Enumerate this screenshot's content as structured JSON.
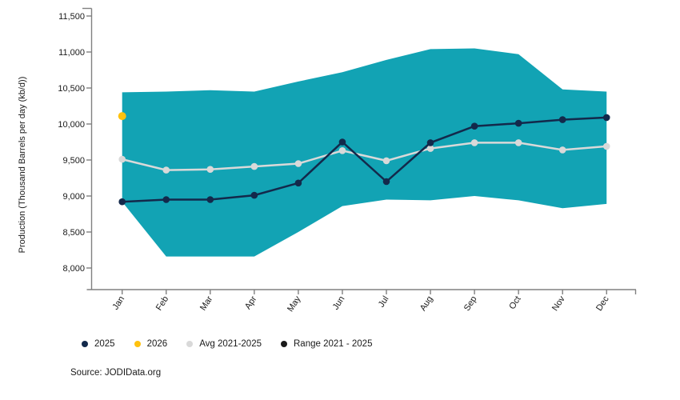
{
  "chart": {
    "y_axis_title": "Production (Thousand Barrels per day (kb/d))",
    "source_note": "Source: JODIData.org",
    "colors": {
      "band": "#12a3b4",
      "line_2025": "#13294b",
      "dot_2026": "#ffc20e",
      "avg_line": "#d9d9d9",
      "range_legend_marker": "#1a1a1a",
      "axis": "#808080",
      "text": "#1a1a1a"
    },
    "legend": [
      {
        "label": "2025",
        "color": "#13294b"
      },
      {
        "label": "2026",
        "color": "#ffc20e"
      },
      {
        "label": "Avg 2021-2025",
        "color": "#d9d9d9"
      },
      {
        "label": "Range 2021 - 2025",
        "color": "#1a1a1a"
      }
    ]
  },
  "chart_data": {
    "type": "line",
    "title": "",
    "xlabel": "",
    "ylabel": "Production (Thousand Barrels per day (kb/d))",
    "ylim": [
      8000,
      11500
    ],
    "grid": false,
    "legend_position": "bottom",
    "categories": [
      "Jan",
      "Feb",
      "Mar",
      "Apr",
      "May",
      "Jun",
      "Jul",
      "Aug",
      "Sep",
      "Oct",
      "Nov",
      "Dec"
    ],
    "y_ticks": [
      {
        "value": 11500,
        "label": "11,500"
      },
      {
        "value": 11000,
        "label": "11,000"
      },
      {
        "value": 10500,
        "label": "10,500"
      },
      {
        "value": 10000,
        "label": "10,000"
      },
      {
        "value": 9500,
        "label": "9,500"
      },
      {
        "value": 9000,
        "label": "9,000"
      },
      {
        "value": 8500,
        "label": "8,500"
      },
      {
        "value": 8000,
        "label": "8,000"
      }
    ],
    "series": [
      {
        "name": "Range 2021 - 2025",
        "type": "band",
        "color": "#12a3b4",
        "upper": [
          10440,
          10450,
          10470,
          10450,
          10590,
          10720,
          10890,
          11040,
          11050,
          10970,
          10480,
          10450
        ],
        "lower": [
          8920,
          8160,
          8160,
          8160,
          8500,
          8860,
          8950,
          8940,
          9000,
          8940,
          8830,
          8890
        ]
      },
      {
        "name": "Avg 2021-2025",
        "type": "line",
        "color": "#d9d9d9",
        "values": [
          9510,
          9360,
          9370,
          9410,
          9450,
          9630,
          9490,
          9660,
          9740,
          9740,
          9640,
          9690
        ]
      },
      {
        "name": "2025",
        "type": "line",
        "color": "#13294b",
        "values": [
          8920,
          8950,
          8950,
          9010,
          9180,
          9750,
          9200,
          9740,
          9970,
          10010,
          10060,
          10090
        ]
      },
      {
        "name": "2026",
        "type": "point",
        "color": "#ffc20e",
        "values": [
          10110,
          null,
          null,
          null,
          null,
          null,
          null,
          null,
          null,
          null,
          null,
          null
        ]
      }
    ]
  }
}
